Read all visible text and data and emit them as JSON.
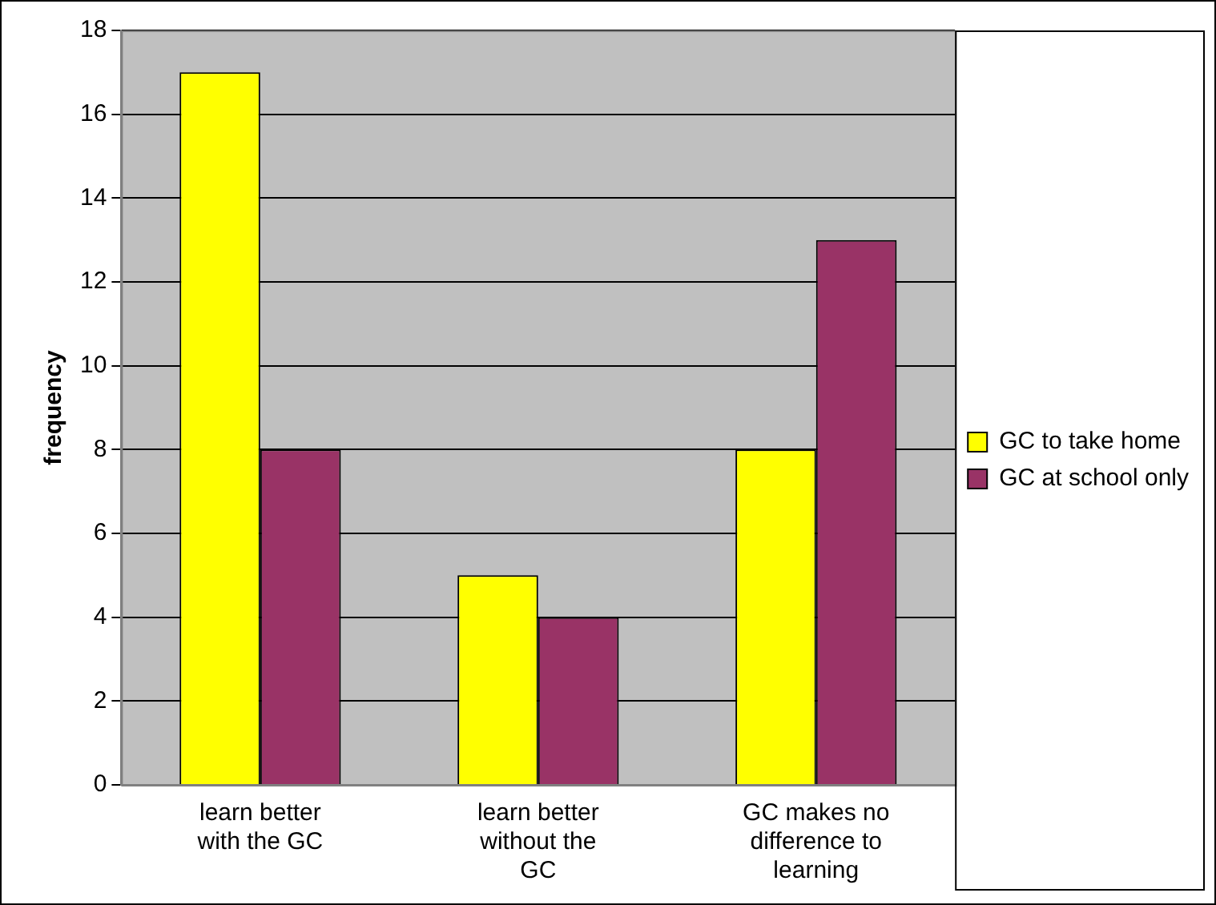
{
  "chart_data": {
    "type": "bar",
    "ylabel": "frequency",
    "categories": [
      "learn better with the GC",
      "learn better without the GC",
      "GC makes no difference to learning"
    ],
    "series": [
      {
        "name": "GC to take home",
        "color": "#ffff00",
        "values": [
          17,
          5,
          8
        ]
      },
      {
        "name": "GC at school only",
        "color": "#993366",
        "values": [
          8,
          4,
          13
        ]
      }
    ],
    "ylim": [
      0,
      18
    ],
    "yticks": [
      0,
      2,
      4,
      6,
      8,
      10,
      12,
      14,
      16,
      18
    ],
    "grid": "y",
    "legend": "right"
  }
}
